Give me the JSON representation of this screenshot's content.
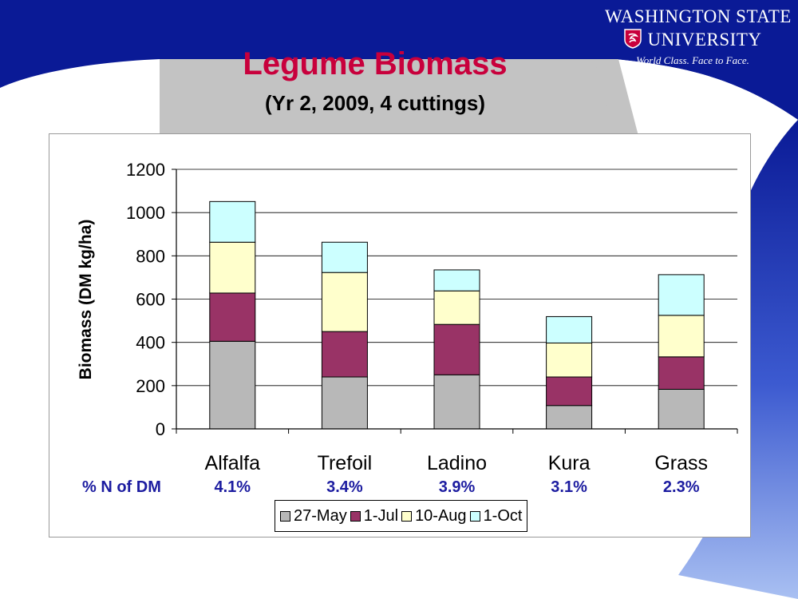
{
  "header": {
    "brand_line1": "WASHINGTON STATE",
    "brand_line2": "UNIVERSITY",
    "brand_tagline": "World Class. Face to Face.",
    "title": "Legume Biomass",
    "subtitle": "(Yr 2, 2009, 4 cuttings)"
  },
  "colors": {
    "banner": "#0a1a96",
    "title": "#c8003c",
    "series": [
      "#b8b8b8",
      "#993366",
      "#ffffcc",
      "#ccffff"
    ],
    "n_text": "#1c1ca0"
  },
  "n_row": {
    "label": "% N of DM",
    "values": [
      "4.1%",
      "3.4%",
      "3.9%",
      "3.1%",
      "2.3%"
    ]
  },
  "chart_data": {
    "type": "bar",
    "stacked": true,
    "title": "Legume Biomass",
    "subtitle": "(Yr 2, 2009, 4 cuttings)",
    "xlabel": "",
    "ylabel": "Biomass (DM kg/ha)",
    "categories": [
      "Alfalfa",
      "Trefoil",
      "Ladino",
      "Kura",
      "Grass"
    ],
    "series": [
      {
        "name": "27-May",
        "values": [
          405,
          240,
          250,
          108,
          183
        ]
      },
      {
        "name": "1-Jul",
        "values": [
          223,
          210,
          233,
          132,
          150
        ]
      },
      {
        "name": "10-Aug",
        "values": [
          235,
          273,
          155,
          157,
          192
        ]
      },
      {
        "name": "1-Oct",
        "values": [
          188,
          140,
          97,
          122,
          188
        ]
      }
    ],
    "ylim": [
      0,
      1200
    ],
    "yticks": [
      0,
      200,
      400,
      600,
      800,
      1000,
      1200
    ],
    "grid": true,
    "legend": "bottom"
  }
}
